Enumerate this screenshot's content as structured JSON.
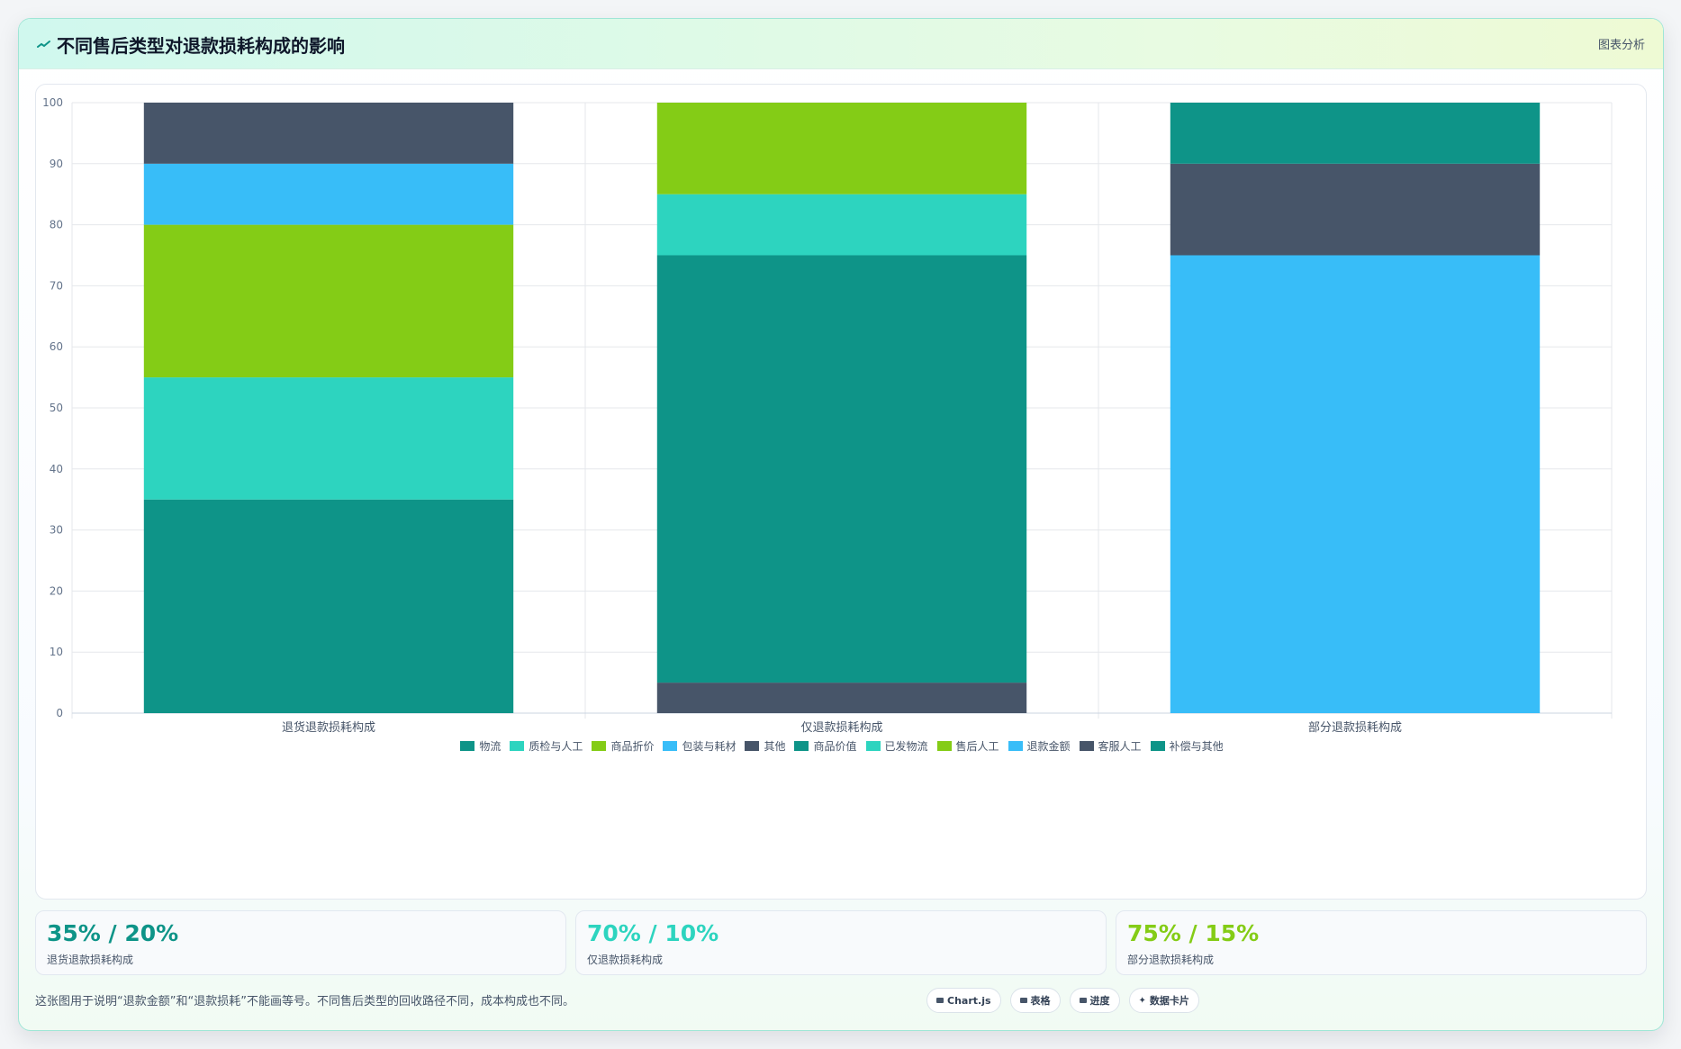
{
  "header": {
    "title": "不同售后类型对退款损耗构成的影响",
    "link_label": "图表分析"
  },
  "colors": {
    "teal": "#0e9488",
    "aqua": "#2dd4bf",
    "lime": "#84cc16",
    "sky": "#38bdf8",
    "slate": "#475569"
  },
  "chart_data": {
    "type": "bar",
    "stacked": true,
    "categories": [
      "退货退款损耗构成",
      "仅退款损耗构成",
      "部分退款损耗构成"
    ],
    "ylim": [
      0,
      100
    ],
    "yticks": [
      0,
      10,
      20,
      30,
      40,
      50,
      60,
      70,
      80,
      90,
      100
    ],
    "grid": true,
    "legend_position": "bottom",
    "series": [
      {
        "name": "物流",
        "color": "#0e9488",
        "values": [
          35,
          0,
          0
        ]
      },
      {
        "name": "质检与人工",
        "color": "#2dd4bf",
        "values": [
          20,
          0,
          0
        ]
      },
      {
        "name": "商品折价",
        "color": "#84cc16",
        "values": [
          25,
          0,
          0
        ]
      },
      {
        "name": "包装与耗材",
        "color": "#38bdf8",
        "values": [
          10,
          0,
          0
        ]
      },
      {
        "name": "其他",
        "color": "#475569",
        "values": [
          10,
          5,
          0
        ]
      },
      {
        "name": "商品价值",
        "color": "#0e9488",
        "values": [
          0,
          70,
          0
        ]
      },
      {
        "name": "已发物流",
        "color": "#2dd4bf",
        "values": [
          0,
          10,
          0
        ]
      },
      {
        "name": "售后人工",
        "color": "#84cc16",
        "values": [
          0,
          15,
          0
        ]
      },
      {
        "name": "退款金额",
        "color": "#38bdf8",
        "values": [
          0,
          0,
          75
        ]
      },
      {
        "name": "客服人工",
        "color": "#475569",
        "values": [
          0,
          0,
          15
        ]
      },
      {
        "name": "补偿与其他",
        "color": "#0e9488",
        "values": [
          0,
          0,
          10
        ]
      }
    ]
  },
  "stats": [
    {
      "value": "35% / 20%",
      "label": "退货退款损耗构成",
      "color": "#0e9488"
    },
    {
      "value": "70% / 10%",
      "label": "仅退款损耗构成",
      "color": "#2dd4bf"
    },
    {
      "value": "75% / 15%",
      "label": "部分退款损耗构成",
      "color": "#84cc16"
    }
  ],
  "footnote": "这张图用于说明“退款金额”和“退款损耗”不能画等号。不同售后类型的回收路径不同，成本构成也不同。",
  "tags": [
    {
      "label": "Chart.js",
      "icon": "chart-icon"
    },
    {
      "label": "表格",
      "icon": "table-icon"
    },
    {
      "label": "进度",
      "icon": "progress-icon"
    },
    {
      "label": "数据卡片",
      "icon": "sparkle-icon"
    }
  ]
}
